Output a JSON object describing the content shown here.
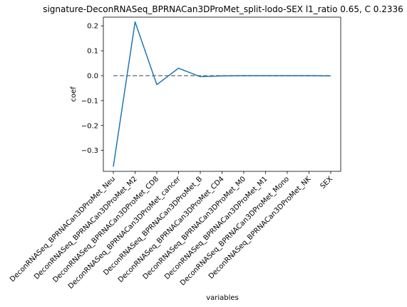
{
  "chart_data": {
    "type": "line",
    "title": "signature-DeconRNASeq_BPRNACan3DProMet_split-lodo-SEX l1_ratio 0.65, C 0.2336",
    "xlabel": "variables",
    "ylabel": "coef",
    "categories": [
      "DeconRNASeq_BPRNACan3DProMet_Neu",
      "DeconRNASeq_BPRNACan3DProMet_M2",
      "DeconRNASeq_BPRNACan3DProMet_CD8",
      "DeconRNASeq_BPRNACan3DProMet_cancer",
      "DeconRNASeq_BPRNACan3DProMet_B",
      "DeconRNASeq_BPRNACan3DProMet_CD4",
      "DeconRNASeq_BPRNACan3DProMet_M0",
      "DeconRNASeq_BPRNACan3DProMet_M1",
      "DeconRNASeq_BPRNACan3DProMet_Mono",
      "DeconRNASeq_BPRNACan3DProMet_NK",
      "SEX"
    ],
    "series": [
      {
        "values": [
          -0.365,
          0.216,
          -0.036,
          0.03,
          -0.004,
          -0.001,
          0.0,
          0.0,
          0.0,
          0.0,
          -0.001
        ],
        "color": "#1f77b4"
      }
    ],
    "reference_line": {
      "y": 0,
      "style": "dashed",
      "color": "#808080"
    },
    "yticks": [
      "0.2",
      "0.1",
      "0.0",
      "−0.1",
      "−0.2",
      "−0.3"
    ],
    "ytick_values": [
      0.2,
      0.1,
      0.0,
      -0.1,
      -0.2,
      -0.3
    ],
    "ylim": [
      -0.384,
      0.235
    ],
    "grid": false,
    "legend": "none"
  }
}
